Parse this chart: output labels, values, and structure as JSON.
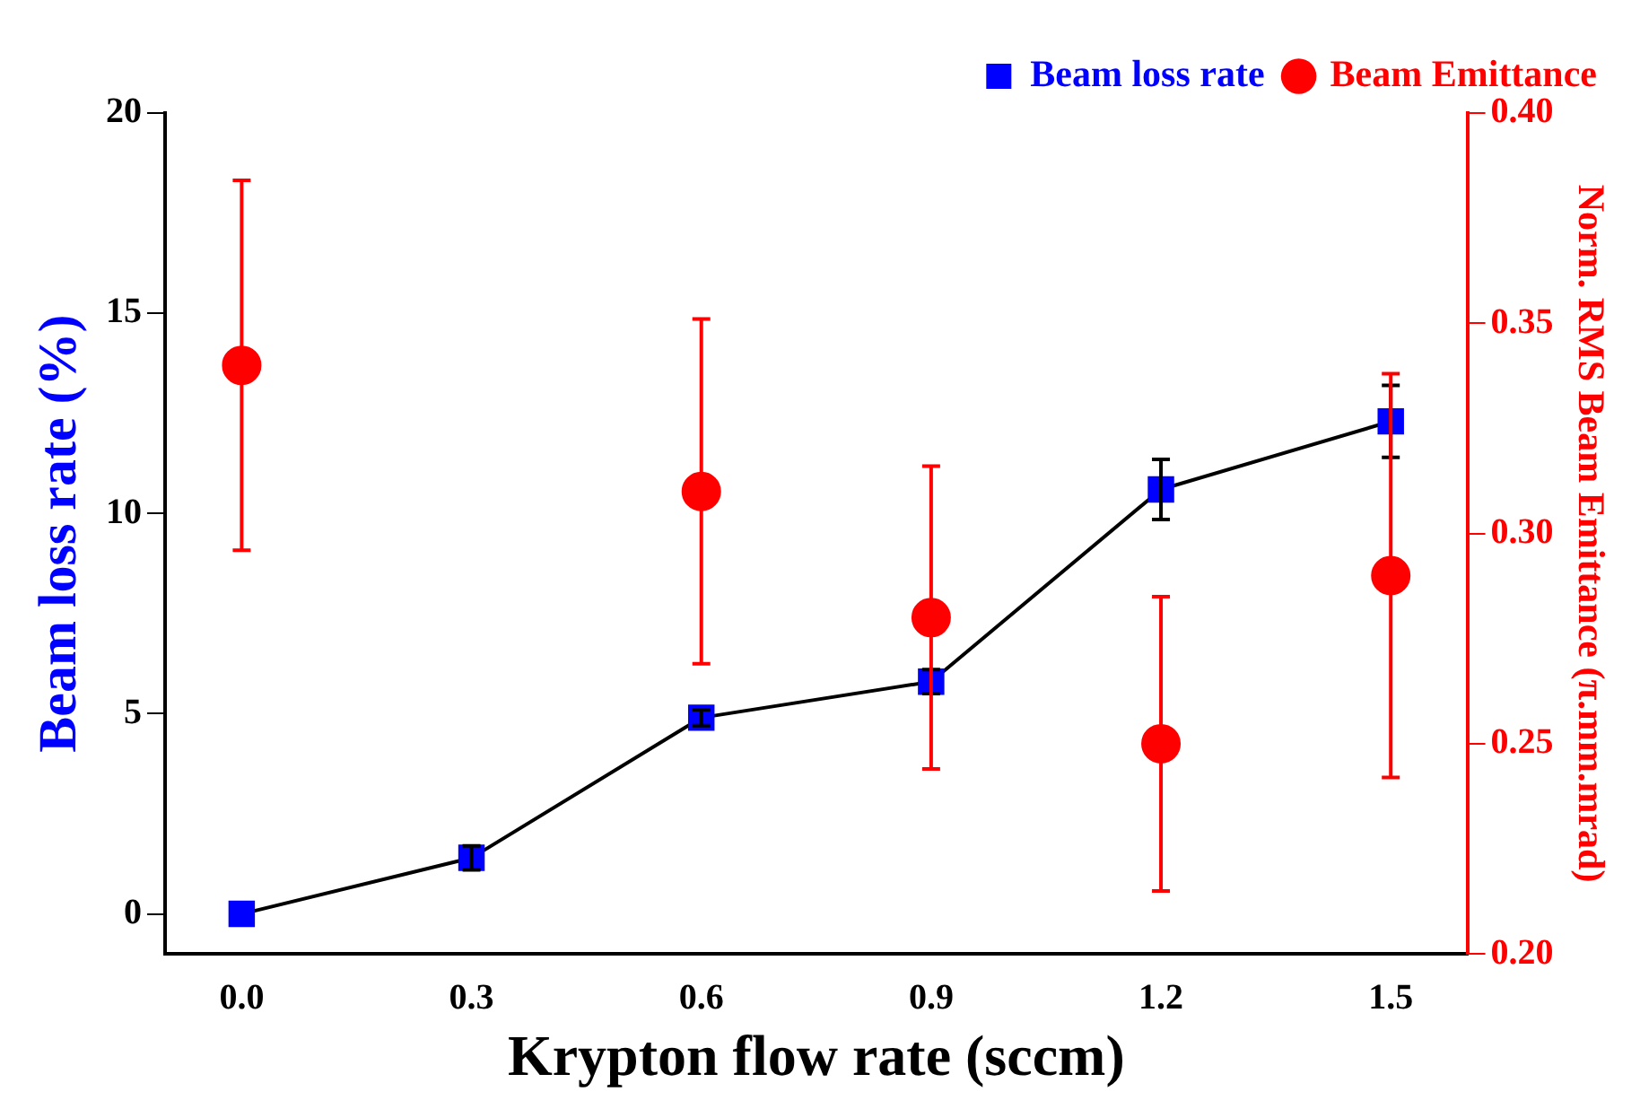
{
  "chart_data": {
    "type": "line",
    "xlabel": "Krypton flow rate (sccm)",
    "ylabel": "Beam loss rate (%)",
    "y2label": "Norm. RMS Beam Emittance (π.mm.mrad)",
    "x": [
      0,
      0.3,
      0.6,
      0.9,
      1.2,
      1.5
    ],
    "xlim": [
      -0.1,
      1.6
    ],
    "xticks": [
      {
        "value": 0,
        "label": "0.0"
      },
      {
        "value": 0.3,
        "label": "0.3"
      },
      {
        "value": 0.6,
        "label": "0.6"
      },
      {
        "value": 0.9,
        "label": "0.9"
      },
      {
        "value": 1.2,
        "label": "1.2"
      },
      {
        "value": 1.5,
        "label": "1.5"
      }
    ],
    "ylim": [
      -1,
      20
    ],
    "yticks": [
      0,
      5,
      10,
      15,
      20
    ],
    "y2lim": [
      0.2,
      0.4
    ],
    "y2ticks": [
      {
        "value": 0.2,
        "label": "0.20"
      },
      {
        "value": 0.25,
        "label": "0.25"
      },
      {
        "value": 0.3,
        "label": "0.30"
      },
      {
        "value": 0.35,
        "label": "0.35"
      },
      {
        "value": 0.4,
        "label": "0.40"
      }
    ],
    "series": [
      {
        "name": "Beam loss rate",
        "color": "#0000ff",
        "marker": "square",
        "values": [
          0,
          1.4,
          4.9,
          5.8,
          10.6,
          12.3
        ],
        "errors": [
          null,
          0.3,
          0.2,
          0.3,
          0.75,
          0.9
        ]
      },
      {
        "name": "Beam Emittance",
        "type": "scatter",
        "axis": "y2",
        "color": "#ff0000",
        "marker": "circle",
        "values": [
          0.34,
          0.31,
          0.28,
          0.25,
          0.29
        ],
        "x": [
          0,
          0.6,
          0.9,
          1.2,
          1.5
        ],
        "errors": [
          0.044,
          0.041,
          0.036,
          0.035,
          0.048
        ]
      }
    ],
    "legend": "top right",
    "grid": false
  }
}
